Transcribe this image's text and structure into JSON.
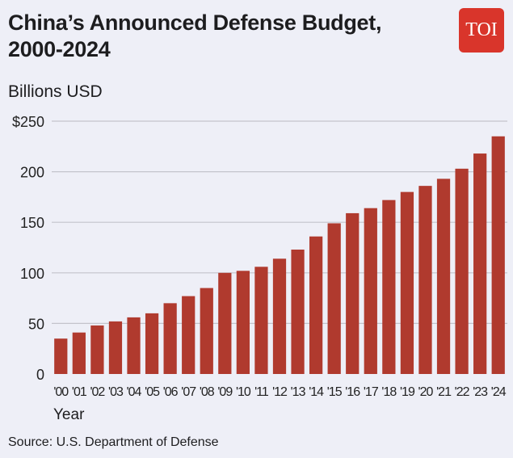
{
  "chart_data": {
    "type": "bar",
    "title": "China’s Announced Defense Budget, 2000-2024",
    "ylabel": "Billions USD",
    "xlabel": "Year",
    "source": "Source: U.S. Department of Defense",
    "logo_text": "TOI",
    "ylim": [
      0,
      250
    ],
    "yticks": [
      0,
      50,
      100,
      150,
      200,
      250
    ],
    "ytick_labels": [
      "0",
      "50",
      "100",
      "150",
      "200",
      "$250"
    ],
    "grid": true,
    "bar_color": "#b03a2e",
    "categories": [
      "'00",
      "'01",
      "'02",
      "'03",
      "'04",
      "'05",
      "'06",
      "'07",
      "'08",
      "'09",
      "'10",
      "'11",
      "'12",
      "'13",
      "'14",
      "'15",
      "'16",
      "'17",
      "'18",
      "'19",
      "'20",
      "'21",
      "'22",
      "'23",
      "'24"
    ],
    "values": [
      35,
      41,
      48,
      52,
      56,
      60,
      70,
      77,
      85,
      100,
      102,
      106,
      114,
      123,
      136,
      149,
      159,
      164,
      172,
      180,
      186,
      193,
      203,
      218,
      235
    ]
  }
}
